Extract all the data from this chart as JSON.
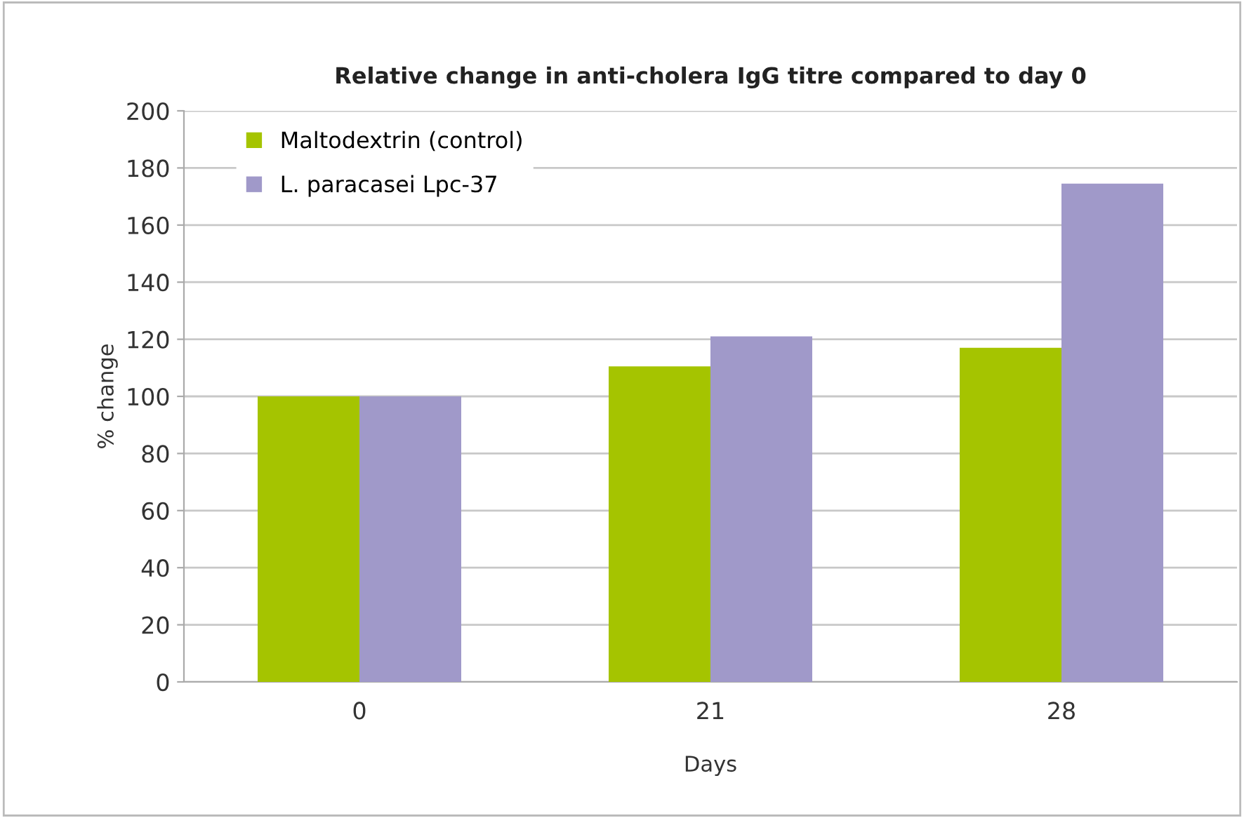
{
  "chart_data": {
    "type": "bar",
    "title": "Relative change in anti-cholera IgG titre compared to day 0",
    "xlabel": "Days",
    "ylabel": "% change",
    "categories": [
      "0",
      "21",
      "28"
    ],
    "series": [
      {
        "name": "Maltodextrin (control)",
        "color": "#a5c400",
        "values": [
          100,
          110.5,
          117
        ]
      },
      {
        "name": "L. paracasei Lpc-37",
        "color": "#a099c9",
        "values": [
          100,
          121,
          174.5
        ]
      }
    ],
    "ylim": [
      0,
      200
    ],
    "yticks": [
      0,
      20,
      40,
      60,
      80,
      100,
      120,
      140,
      160,
      180,
      200
    ],
    "grid": "y",
    "legend": "top left"
  }
}
